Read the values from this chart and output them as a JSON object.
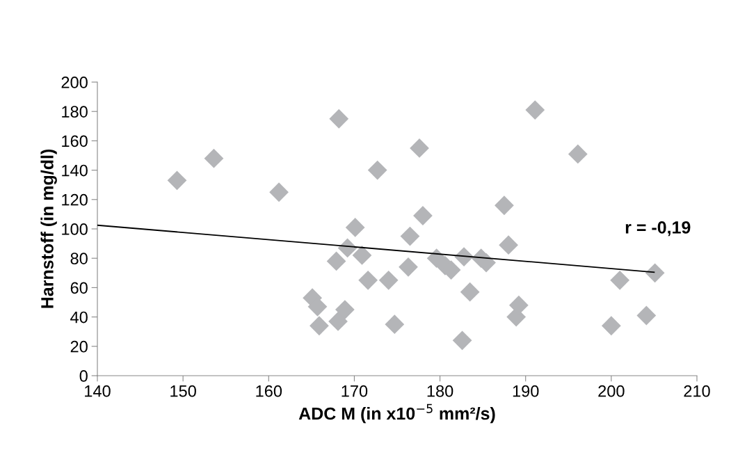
{
  "chart_data": {
    "type": "scatter",
    "xlabel": "ADC M (in x10$^{−5}$ mm²/s)",
    "ylabel": "Harnstoff (in mg/dl)",
    "xlim": [
      140,
      210
    ],
    "xticks": [
      140,
      150,
      160,
      170,
      180,
      190,
      200,
      210
    ],
    "ylim": [
      0,
      200
    ],
    "yticks": [
      0,
      20,
      40,
      60,
      80,
      100,
      120,
      140,
      160,
      180,
      200
    ],
    "grid": false,
    "marker": "diamond",
    "legend": false,
    "annotations": [
      "r = -0,19"
    ],
    "series": [
      {
        "color": "#b4b5b8",
        "x": [
          149.3,
          153.6,
          161.2,
          165.1,
          165.7,
          165.9,
          167.9,
          168.1,
          168.2,
          168.9,
          169.2,
          170.1,
          170.9,
          171.6,
          172.7,
          174.0,
          174.7,
          176.3,
          176.5,
          177.6,
          178.0,
          179.6,
          180.6,
          181.3,
          182.6,
          182.8,
          183.5,
          184.8,
          185.4,
          187.5,
          188.0,
          188.9,
          189.2,
          191.1,
          196.1,
          200.0,
          201.0,
          204.1,
          205.1
        ],
        "values": [
          133,
          148,
          125,
          53,
          47,
          34,
          78,
          37,
          175,
          45,
          87,
          101,
          82,
          65,
          140,
          65,
          35,
          74,
          95,
          155,
          109,
          80,
          75,
          72,
          24,
          81,
          57,
          80,
          77,
          116,
          89,
          40,
          48,
          181,
          151,
          34,
          65,
          41,
          70
        ]
      },
      {
        "type": "line",
        "color": "#000000",
        "x": [
          140,
          205
        ],
        "values": [
          102.5,
          70.5
        ],
        "marker": "none",
        "line_style": "solid"
      }
    ]
  }
}
